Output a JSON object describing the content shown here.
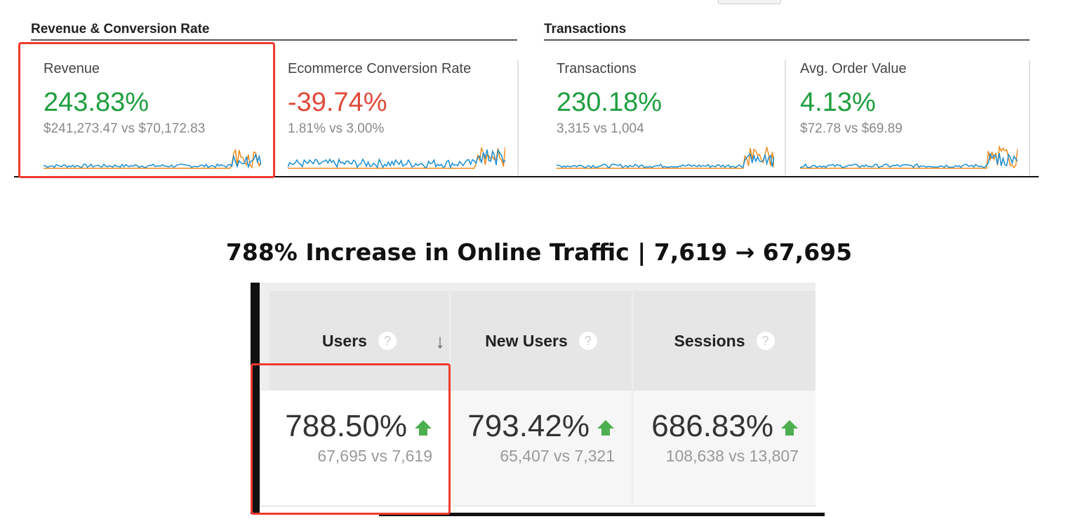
{
  "colors": {
    "positive": "#1e9e3e",
    "negative": "#e04a3a",
    "this_period": "#1a8ed1",
    "previous_period": "#f08a1c",
    "highlight": "#f03a2e",
    "arrow_up": "#4caf50"
  },
  "top": {
    "groups": [
      {
        "title": "Revenue & Conversion Rate"
      },
      {
        "title": "Transactions"
      }
    ],
    "cards": [
      {
        "label": "Revenue",
        "change": "243.83%",
        "compare": "$241,273.47 vs $70,172.83",
        "trend": "positive"
      },
      {
        "label": "Ecommerce Conversion Rate",
        "change": "-39.74%",
        "compare": "1.81% vs 3.00%",
        "trend": "negative"
      },
      {
        "label": "Transactions",
        "change": "230.18%",
        "compare": "3,315 vs 1,004",
        "trend": "positive"
      },
      {
        "label": "Avg. Order Value",
        "change": "4.13%",
        "compare": "$72.78 vs $69.89",
        "trend": "positive"
      }
    ]
  },
  "headline": "788% Increase in Online Traffic | 7,619 → 67,695",
  "table": {
    "columns": [
      {
        "header": "Users",
        "help": "?",
        "sort_icon": "arrow-down",
        "change": "788.50%",
        "compare": "67,695 vs 7,619"
      },
      {
        "header": "New Users",
        "help": "?",
        "change": "793.42%",
        "compare": "65,407 vs 7,321"
      },
      {
        "header": "Sessions",
        "help": "?",
        "change": "686.83%",
        "compare": "108,638 vs 13,807"
      }
    ]
  }
}
